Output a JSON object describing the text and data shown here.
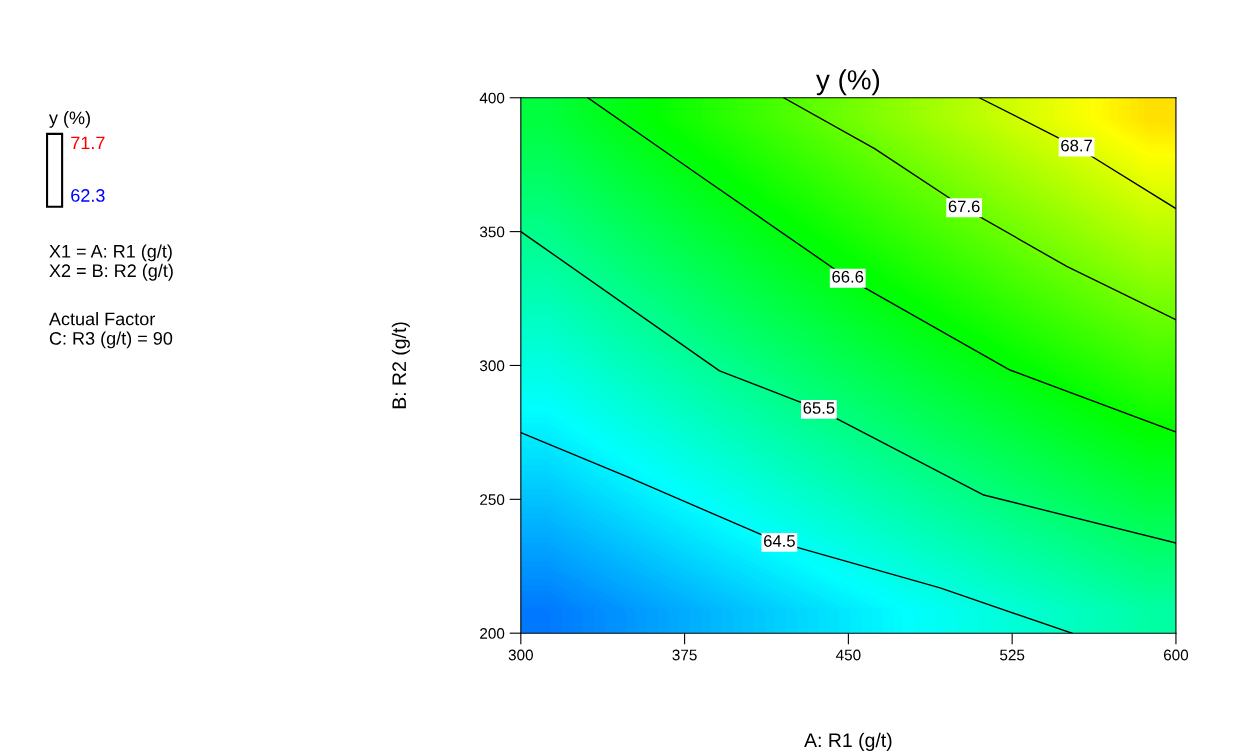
{
  "chart_data": {
    "type": "line",
    "title": "y (%)",
    "xlabel": "A: R1 (g/t)",
    "ylabel": "B: R2 (g/t)",
    "xlim": [
      300,
      600
    ],
    "xticks": [
      300,
      375,
      450,
      525,
      600
    ],
    "ylim": [
      200,
      400
    ],
    "yticks": [
      200,
      250,
      300,
      350,
      400
    ],
    "grid": false,
    "marker": "none",
    "series": [
      {
        "name": "64.5",
        "color": "#000000",
        "x": [
          300,
          350,
          418.4,
          492,
          552.4
        ],
        "values": [
          274.9,
          258,
          233.9,
          216.9,
          200
        ]
      },
      {
        "name": "65.5",
        "color": "#000000",
        "x": [
          300,
          391,
          436.5,
          512,
          600
        ],
        "values": [
          350,
          298,
          283.6,
          251.6,
          233.7
        ]
      },
      {
        "name": "66.6",
        "color": "#000000",
        "x": [
          330.7,
          380,
          449.7,
          524,
          600
        ],
        "values": [
          400,
          372,
          332.6,
          298.3,
          275.2
        ]
      },
      {
        "name": "67.6",
        "color": "#000000",
        "x": [
          420.4,
          462,
          503,
          550,
          600
        ],
        "values": [
          400,
          381,
          358.9,
          337,
          317.1
        ]
      },
      {
        "name": "68.7",
        "color": "#000000",
        "x": [
          510,
          554.5,
          600
        ],
        "values": [
          400,
          381.6,
          358.6
        ]
      }
    ],
    "annotations": [
      "y (%)",
      "71.7",
      "62.3",
      "X1 = A: R1 (g/t)\nX2 = B: R2 (g/t)",
      "Actual Factor\nC: R3 (g/t) = 90"
    ]
  }
}
